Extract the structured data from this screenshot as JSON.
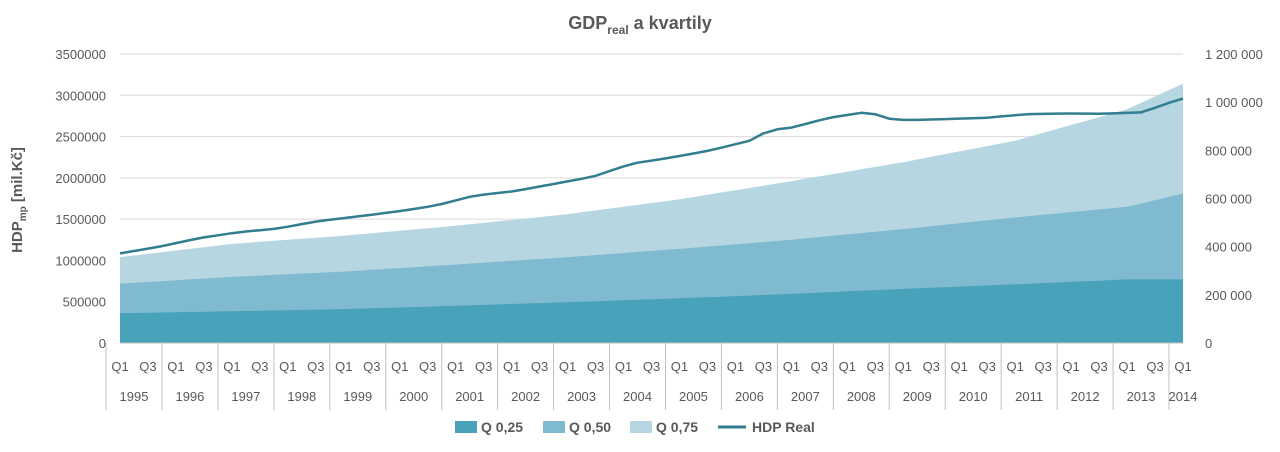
{
  "chart_data": {
    "type": "area",
    "title": "GDP",
    "title_sub": "real",
    "title_rest": " a kvartily",
    "ylabel": "HDP",
    "ylabel_sub": "mp",
    "ylabel_rest": " [mil.Kč]",
    "y_left_lim": [
      0,
      3500000
    ],
    "y_left_ticks": [
      "0",
      "500000",
      "1000000",
      "1500000",
      "2000000",
      "2500000",
      "3000000",
      "3500000"
    ],
    "y_right_lim": [
      0,
      1200000
    ],
    "y_right_ticks": [
      "0",
      "200 000",
      "400 000",
      "600 000",
      "800 000",
      "1 000 000",
      "1 200 000"
    ],
    "grid": true,
    "legend_position": "bottom",
    "quarter_labels": [
      "Q1",
      "Q3",
      "Q1",
      "Q3",
      "Q1",
      "Q3",
      "Q1",
      "Q3",
      "Q1",
      "Q3",
      "Q1",
      "Q3",
      "Q1",
      "Q3",
      "Q1",
      "Q3",
      "Q1",
      "Q3",
      "Q1",
      "Q3",
      "Q1",
      "Q3",
      "Q1",
      "Q3",
      "Q1",
      "Q3",
      "Q1",
      "Q3",
      "Q1",
      "Q3",
      "Q1",
      "Q3",
      "Q1",
      "Q3",
      "Q1",
      "Q3",
      "Q1",
      "Q3",
      "Q1"
    ],
    "years": [
      "1995",
      "1996",
      "1997",
      "1998",
      "1999",
      "2000",
      "2001",
      "2002",
      "2003",
      "2004",
      "2005",
      "2006",
      "2007",
      "2008",
      "2009",
      "2010",
      "2011",
      "2012",
      "2013",
      "2014"
    ],
    "series": [
      {
        "name": "Q 0,25",
        "kind": "area",
        "axis": "left",
        "color": "#47a2ba",
        "anchors": [
          [
            0,
            360000
          ],
          [
            8,
            385000
          ],
          [
            16,
            410000
          ],
          [
            24,
            450000
          ],
          [
            32,
            495000
          ],
          [
            40,
            540000
          ],
          [
            48,
            595000
          ],
          [
            56,
            655000
          ],
          [
            64,
            710000
          ],
          [
            72,
            770000
          ]
        ]
      },
      {
        "name": "Q 0,50",
        "kind": "area",
        "axis": "left",
        "color": "#7fbad0",
        "anchors": [
          [
            0,
            720000
          ],
          [
            8,
            800000
          ],
          [
            16,
            865000
          ],
          [
            24,
            950000
          ],
          [
            32,
            1040000
          ],
          [
            40,
            1140000
          ],
          [
            48,
            1250000
          ],
          [
            56,
            1380000
          ],
          [
            64,
            1520000
          ],
          [
            72,
            1650000
          ],
          [
            76,
            1810000
          ]
        ]
      },
      {
        "name": "Q 0,75",
        "kind": "area",
        "axis": "left",
        "color": "#b6d6e1",
        "anchors": [
          [
            0,
            1040000
          ],
          [
            8,
            1200000
          ],
          [
            16,
            1300000
          ],
          [
            24,
            1420000
          ],
          [
            32,
            1560000
          ],
          [
            40,
            1740000
          ],
          [
            48,
            1960000
          ],
          [
            56,
            2190000
          ],
          [
            64,
            2450000
          ],
          [
            72,
            2830000
          ],
          [
            76,
            3140000
          ]
        ]
      },
      {
        "name": "HDP Real",
        "kind": "line",
        "axis": "right",
        "color": "#327d8f",
        "anchors": [
          [
            0,
            372000
          ],
          [
            4,
            400000
          ],
          [
            8,
            435000
          ],
          [
            12,
            460000
          ],
          [
            16,
            475000
          ],
          [
            20,
            505000
          ],
          [
            24,
            525000
          ],
          [
            28,
            545000
          ],
          [
            32,
            570000
          ],
          [
            36,
            612000
          ],
          [
            40,
            630000
          ],
          [
            44,
            660000
          ],
          [
            48,
            690000
          ],
          [
            52,
            745000
          ],
          [
            56,
            770000
          ],
          [
            60,
            800000
          ],
          [
            64,
            840000
          ],
          [
            66,
            884000
          ],
          [
            68,
            892000
          ],
          [
            72,
            935000
          ],
          [
            76,
            960000
          ],
          [
            78,
            932000
          ],
          [
            80,
            925000
          ],
          [
            84,
            930000
          ],
          [
            88,
            935000
          ],
          [
            92,
            950000
          ],
          [
            96,
            953000
          ],
          [
            100,
            952000
          ],
          [
            104,
            958000
          ],
          [
            106,
            990000
          ],
          [
            108,
            1015000
          ]
        ]
      }
    ]
  }
}
